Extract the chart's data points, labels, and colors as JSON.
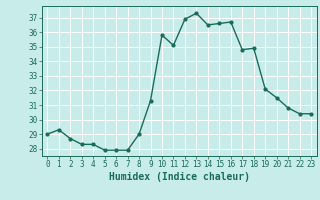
{
  "x": [
    0,
    1,
    2,
    3,
    4,
    5,
    6,
    7,
    8,
    9,
    10,
    11,
    12,
    13,
    14,
    15,
    16,
    17,
    18,
    19,
    20,
    21,
    22,
    23
  ],
  "y": [
    29.0,
    29.3,
    28.7,
    28.3,
    28.3,
    27.9,
    27.9,
    27.9,
    29.0,
    31.3,
    35.8,
    35.1,
    36.9,
    37.3,
    36.5,
    36.6,
    36.7,
    34.8,
    34.9,
    32.1,
    31.5,
    30.8,
    30.4,
    30.4
  ],
  "line_color": "#1a6b5a",
  "marker": "o",
  "markersize": 2.0,
  "linewidth": 1.0,
  "bg_color": "#c8ecea",
  "grid_color": "#ffffff",
  "xlabel": "Humidex (Indice chaleur)",
  "ylim": [
    27.5,
    37.8
  ],
  "xlim": [
    -0.5,
    23.5
  ],
  "yticks": [
    28,
    29,
    30,
    31,
    32,
    33,
    34,
    35,
    36,
    37
  ],
  "xticks": [
    0,
    1,
    2,
    3,
    4,
    5,
    6,
    7,
    8,
    9,
    10,
    11,
    12,
    13,
    14,
    15,
    16,
    17,
    18,
    19,
    20,
    21,
    22,
    23
  ],
  "tick_color": "#1a6b5a",
  "tick_fontsize": 5.5,
  "xlabel_fontsize": 7.0,
  "grid_linewidth": 0.7,
  "spine_linewidth": 0.7
}
